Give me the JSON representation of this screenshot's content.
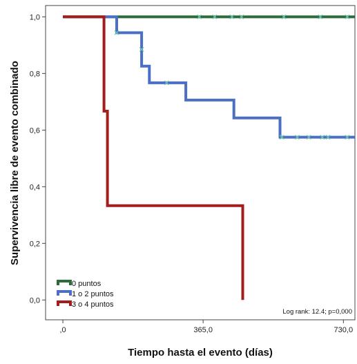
{
  "chart_data": {
    "type": "line",
    "subtype": "kaplan-meier-step",
    "xlabel": "Tiempo hasta el evento (días)",
    "ylabel": "Supervivencia libre de evento combinado",
    "xlim": [
      -45,
      760
    ],
    "ylim": [
      -0.07,
      1.04
    ],
    "x_ticks": [
      0,
      365,
      730
    ],
    "x_tick_labels": [
      ",0",
      "365,0",
      "730,0"
    ],
    "y_ticks": [
      0.0,
      0.2,
      0.4,
      0.6,
      0.8,
      1.0
    ],
    "y_tick_labels": [
      "0,0",
      "0,2",
      "0,4",
      "0,6",
      "0,8",
      "1,0"
    ],
    "legend_position": "bottom-left",
    "annotation": "Log rank: 12.4;  p=0,000",
    "series": [
      {
        "name": "0 puntos",
        "color": "#2e6b3a",
        "steps": [
          [
            0,
            1.0
          ],
          [
            760,
            1.0
          ]
        ],
        "censored": [
          [
            355,
            1.0
          ],
          [
            395,
            1.0
          ],
          [
            440,
            1.0
          ],
          [
            465,
            1.0
          ],
          [
            575,
            1.0
          ],
          [
            670,
            1.0
          ],
          [
            740,
            1.0
          ]
        ]
      },
      {
        "name": "1 o 2 puntos",
        "color": "#4a6fc4",
        "steps": [
          [
            0,
            1.0
          ],
          [
            140,
            1.0
          ],
          [
            140,
            0.944
          ],
          [
            205,
            0.944
          ],
          [
            205,
            0.826
          ],
          [
            225,
            0.826
          ],
          [
            225,
            0.767
          ],
          [
            320,
            0.767
          ],
          [
            320,
            0.706
          ],
          [
            445,
            0.706
          ],
          [
            445,
            0.643
          ],
          [
            565,
            0.643
          ],
          [
            565,
            0.575
          ],
          [
            760,
            0.575
          ]
        ],
        "censored": [
          [
            140,
            0.944
          ],
          [
            205,
            0.885
          ],
          [
            270,
            0.767
          ],
          [
            570,
            0.575
          ],
          [
            610,
            0.575
          ],
          [
            640,
            0.575
          ],
          [
            675,
            0.575
          ],
          [
            690,
            0.575
          ],
          [
            740,
            0.575
          ]
        ]
      },
      {
        "name": "3 o 4 puntos",
        "color": "#a31d1d",
        "steps": [
          [
            0,
            1.0
          ],
          [
            107,
            1.0
          ],
          [
            107,
            0.667
          ],
          [
            116,
            0.667
          ],
          [
            116,
            0.333
          ],
          [
            468,
            0.333
          ],
          [
            468,
            0.0
          ]
        ],
        "censored": []
      }
    ]
  }
}
